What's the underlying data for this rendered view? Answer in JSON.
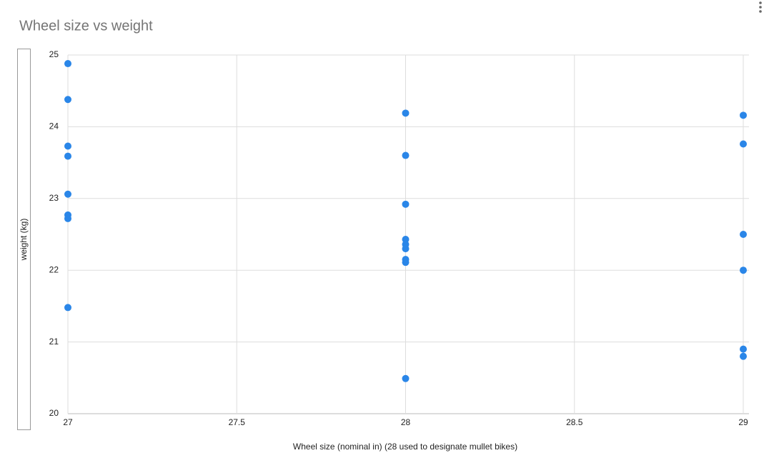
{
  "chart_data": {
    "type": "scatter",
    "title": "Wheel size vs weight",
    "x_label": "Wheel size (nominal in) (28 used to designate mullet bikes)",
    "y_label": "weight (kg)",
    "x": [
      27,
      27,
      27,
      27,
      27,
      27,
      27,
      27,
      28,
      28,
      28,
      28,
      28,
      28,
      28,
      28,
      28,
      29,
      29,
      29,
      29,
      29,
      29
    ],
    "values": [
      24.88,
      24.38,
      23.73,
      23.59,
      23.06,
      22.77,
      22.72,
      21.48,
      24.19,
      23.6,
      22.92,
      22.43,
      22.36,
      22.3,
      22.15,
      22.11,
      20.49,
      24.16,
      23.76,
      22.5,
      22.0,
      20.9,
      20.8
    ],
    "color": "#2a86e8",
    "xlim": [
      27,
      29
    ],
    "xticks": [
      27,
      27.5,
      28,
      28.5,
      29
    ],
    "ylim": [
      20,
      25
    ],
    "yticks": [
      20,
      21,
      22,
      23,
      24,
      25
    ],
    "grid": true
  }
}
